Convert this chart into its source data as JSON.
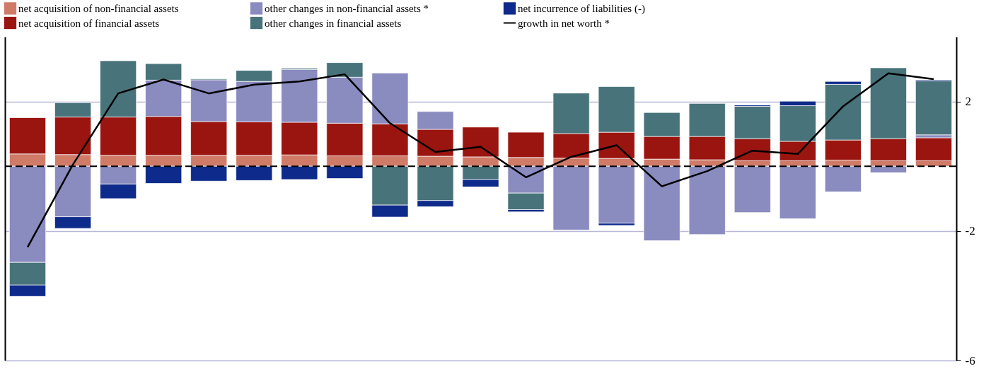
{
  "chart_data": {
    "type": "bar",
    "stacked": true,
    "categories": [
      null,
      null,
      null,
      null,
      null,
      null,
      null,
      null,
      null,
      null,
      null,
      null,
      null,
      null,
      null,
      null,
      null,
      null,
      null,
      null,
      null
    ],
    "series": [
      {
        "name": "net acquisition of non-financial assets",
        "color": "#d07b68",
        "values": [
          0.38,
          0.36,
          0.34,
          0.34,
          0.34,
          0.34,
          0.35,
          0.32,
          0.32,
          0.31,
          0.29,
          0.27,
          0.25,
          0.24,
          0.22,
          0.2,
          0.17,
          0.17,
          0.19,
          0.17,
          0.17
        ]
      },
      {
        "name": "net acquisition of financial assets",
        "color": "#9b1510",
        "values": [
          1.12,
          1.16,
          1.18,
          1.2,
          1.04,
          1.03,
          1.01,
          1.01,
          0.99,
          0.83,
          0.92,
          0.78,
          0.76,
          0.81,
          0.7,
          0.72,
          0.68,
          0.6,
          0.62,
          0.68,
          0.71
        ]
      },
      {
        "name": "other changes in non-financial assets *",
        "color": "#8a8bbf",
        "values": [
          -2.97,
          -1.56,
          -0.55,
          1.12,
          1.29,
          1.25,
          1.63,
          1.42,
          1.57,
          0.55,
          null,
          -0.83,
          -1.97,
          -1.76,
          -2.3,
          -2.11,
          -1.43,
          -1.62,
          -0.79,
          -0.2,
          0.09
        ]
      },
      {
        "name": "other changes in financial assets",
        "color": "#48737a",
        "values": [
          -0.7,
          0.44,
          1.74,
          0.51,
          0.03,
          0.34,
          0.04,
          0.45,
          -1.2,
          -1.06,
          -0.41,
          -0.51,
          1.25,
          1.41,
          0.74,
          1.02,
          1.0,
          1.1,
          1.72,
          2.19,
          1.67
        ]
      },
      {
        "name": "net incurrence of liabilities (-)",
        "color": "#0e2a8a",
        "values": [
          -0.35,
          -0.36,
          -0.45,
          -0.53,
          -0.46,
          -0.44,
          -0.41,
          -0.38,
          -0.37,
          -0.19,
          -0.23,
          -0.07,
          null,
          -0.07,
          null,
          null,
          0.04,
          0.14,
          0.09,
          null,
          0.03
        ]
      },
      {
        "name": "growth in net worth  *",
        "type": "line",
        "color": "#000000",
        "values": [
          -2.5,
          0.05,
          2.25,
          2.68,
          2.25,
          2.52,
          2.62,
          2.84,
          1.33,
          0.44,
          0.6,
          -0.34,
          0.29,
          0.65,
          -0.62,
          -0.15,
          0.48,
          0.38,
          1.85,
          2.87,
          2.69
        ]
      }
    ],
    "ylim": [
      -6,
      4
    ],
    "yticks": [
      2,
      -2,
      -6
    ],
    "grid": "y",
    "legend": "top",
    "tick_labels": "y",
    "ref_lines": [
      {
        "axis": "y",
        "value": 0,
        "color": "#000000",
        "line_style": "dashed"
      }
    ]
  }
}
